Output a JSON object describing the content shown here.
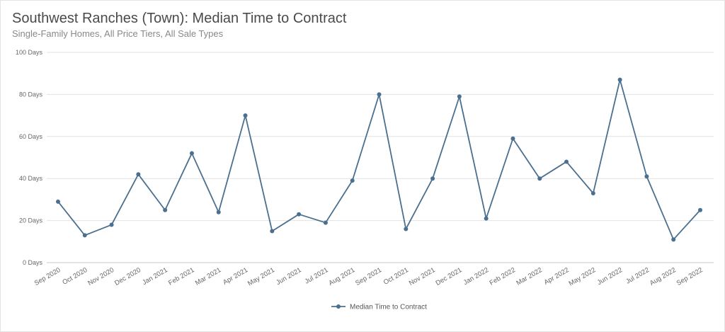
{
  "title": "Southwest Ranches (Town): Median Time to Contract",
  "subtitle": "Single-Family Homes, All Price Tiers, All Sale Types",
  "colors": {
    "series": "#4b6f8f",
    "grid": "#e2e2e2",
    "axis": "#c8c8c8"
  },
  "chart_data": {
    "type": "line",
    "title": "Southwest Ranches (Town): Median Time to Contract",
    "subtitle": "Single-Family Homes, All Price Tiers, All Sale Types",
    "ylim": [
      0,
      100
    ],
    "y_ticks": [
      0,
      20,
      40,
      60,
      80,
      100
    ],
    "y_tick_labels": [
      "0 Days",
      "20 Days",
      "40 Days",
      "60 Days",
      "80 Days",
      "100 Days"
    ],
    "grid": true,
    "legend_position": "bottom-center",
    "categories": [
      "Sep 2020",
      "Oct 2020",
      "Nov 2020",
      "Dec 2020",
      "Jan 2021",
      "Feb 2021",
      "Mar 2021",
      "Apr 2021",
      "May 2021",
      "Jun 2021",
      "Jul 2021",
      "Aug 2021",
      "Sep 2021",
      "Oct 2021",
      "Nov 2021",
      "Dec 2021",
      "Jan 2022",
      "Feb 2022",
      "Mar 2022",
      "Apr 2022",
      "May 2022",
      "Jun 2022",
      "Jul 2022",
      "Aug 2022",
      "Sep 2022"
    ],
    "series": [
      {
        "name": "Median Time to Contract",
        "values": [
          29,
          13,
          18,
          42,
          25,
          52,
          24,
          70,
          15,
          23,
          19,
          39,
          80,
          16,
          40,
          79,
          21,
          59,
          40,
          48,
          33,
          87,
          41,
          11,
          25
        ]
      }
    ]
  }
}
